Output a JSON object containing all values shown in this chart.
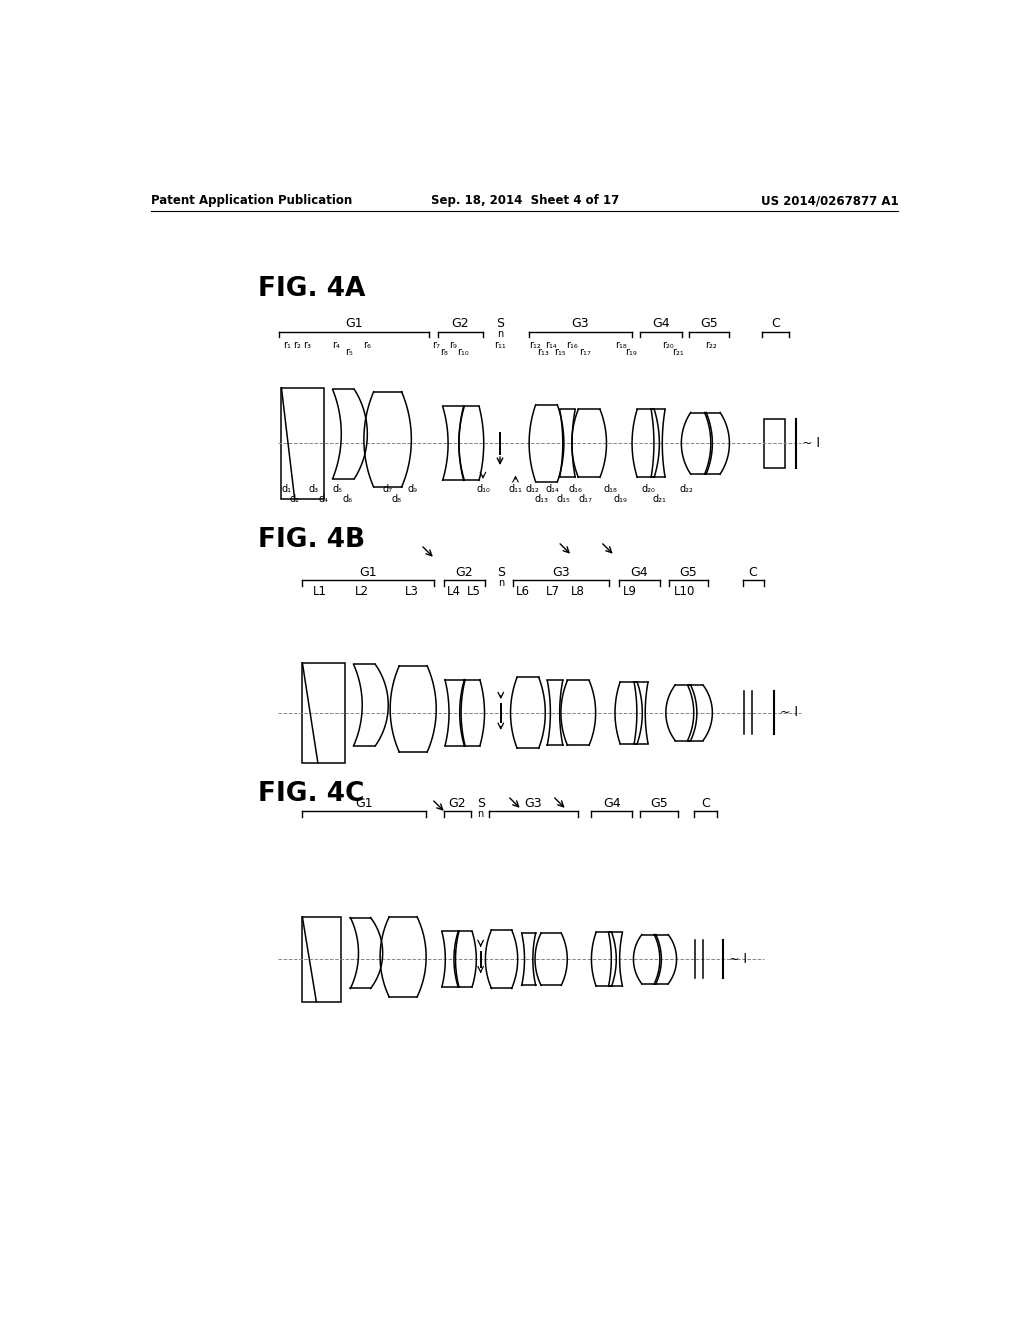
{
  "bg_color": "#ffffff",
  "header_left": "Patent Application Publication",
  "header_center": "Sep. 18, 2014  Sheet 4 of 17",
  "header_right": "US 2014/0267877 A1",
  "fig4a_label": "FIG. 4A",
  "fig4b_label": "FIG. 4B",
  "fig4c_label": "FIG. 4C"
}
